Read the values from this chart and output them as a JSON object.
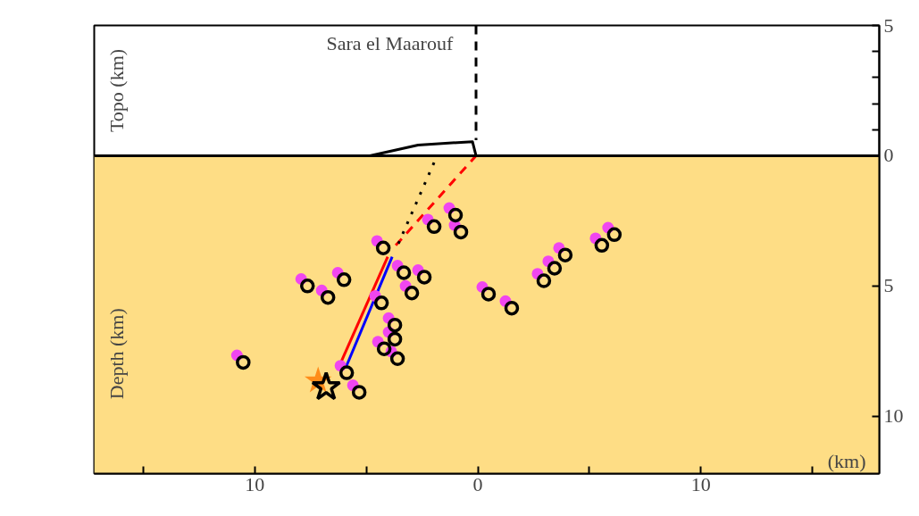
{
  "chart_data": {
    "type": "scatter",
    "ylabel": "Depth (km)",
    "xlabel": "(km)",
    "annotations": [
      "Topo (km)",
      "Sara el   Maarouf"
    ],
    "xlim": [
      -17.2,
      18.0
    ],
    "ylim": [
      12.2,
      -5
    ],
    "xticks": [
      {
        "value": -15,
        "label": null
      },
      {
        "value": -10,
        "label": "10"
      },
      {
        "value": -5,
        "label": null
      },
      0,
      {
        "value": 5,
        "label": null
      },
      10,
      {
        "value": 15,
        "label": null
      }
    ],
    "yticks": [
      {
        "value": -5,
        "label": "5"
      },
      {
        "value": -4,
        "label": null
      },
      {
        "value": -3,
        "label": null
      },
      {
        "value": -2,
        "label": null
      },
      {
        "value": -1,
        "label": null
      },
      0,
      5,
      10
    ],
    "grid": false,
    "bands": [
      {
        "axis": "y",
        "from": 0,
        "to": 12.2,
        "color": "#fedd85"
      }
    ],
    "ref_lines": [
      {
        "axis": "y",
        "value": 0,
        "color": "#000000"
      }
    ],
    "series": [
      {
        "marker": "circle",
        "color": "#f046f0",
        "x": [
          -4.52,
          -2.24,
          -1.28,
          -1.04,
          -7.92,
          -6.28,
          -7.0,
          -3.6,
          -2.68,
          -3.24,
          -4.6,
          -4.0,
          -4.0,
          -4.48,
          -3.88,
          -10.8,
          -6.16,
          -5.6,
          0.2,
          1.24,
          2.68,
          3.16,
          3.64,
          5.28,
          5.84
        ],
        "values": [
          3.27,
          2.45,
          2.01,
          2.66,
          4.73,
          4.49,
          5.17,
          4.22,
          4.39,
          5.0,
          5.38,
          6.23,
          6.77,
          7.14,
          7.52,
          7.66,
          8.06,
          8.81,
          5.04,
          5.58,
          4.53,
          4.05,
          3.54,
          3.17,
          2.76
        ]
      },
      {
        "marker": "circle",
        "color": "#000000",
        "x": [
          -4.24,
          -1.96,
          -1.0,
          -0.76,
          -7.64,
          -6.0,
          -6.72,
          -3.32,
          -2.4,
          -2.96,
          -4.32,
          -3.72,
          -3.72,
          -4.2,
          -3.6,
          -10.52,
          -5.88,
          -5.32,
          0.48,
          1.52,
          2.96,
          3.44,
          3.92,
          5.56,
          6.12
        ],
        "values": [
          3.54,
          2.72,
          2.28,
          2.93,
          5.0,
          4.76,
          5.44,
          4.49,
          4.66,
          5.27,
          5.65,
          6.5,
          7.04,
          7.41,
          7.79,
          7.93,
          8.33,
          9.08,
          5.31,
          5.85,
          4.8,
          4.32,
          3.81,
          3.44,
          3.03
        ]
      },
      {
        "type": "line",
        "color": "#ff0000",
        "line_style": "solid",
        "x": [
          -6.24,
          -4.04
        ],
        "values": [
          8.13,
          3.88
        ]
      },
      {
        "type": "line",
        "color": "#0000ff",
        "line_style": "solid",
        "x": [
          -5.92,
          -3.84
        ],
        "values": [
          8.13,
          3.88
        ]
      },
      {
        "type": "line",
        "color": "#ff0000",
        "line_style": "dashed",
        "x": [
          -3.68,
          -0.08
        ],
        "values": [
          3.44,
          0
        ]
      },
      {
        "type": "line",
        "color": "#000000",
        "line_style": "dotted",
        "x": [
          -3.56,
          -1.84
        ],
        "values": [
          3.37,
          0.03
        ]
      },
      {
        "type": "line",
        "color": "#000000",
        "line_style": "solid",
        "x": [
          -4.84,
          -2.68,
          -0.24,
          -0.08
        ],
        "values": [
          0,
          -0.41,
          -0.54,
          0
        ]
      },
      {
        "type": "line",
        "color": "#000000",
        "line_style": "dashed",
        "x": [
          -0.08,
          -0.08
        ],
        "values": [
          -5,
          -0.6
        ]
      },
      {
        "marker": "star",
        "color": "#ff8c1a",
        "x": [
          -7.16
        ],
        "values": [
          8.64
        ]
      },
      {
        "marker": "star",
        "color": "#000000",
        "x": [
          -6.8
        ],
        "values": [
          8.88
        ]
      }
    ]
  }
}
